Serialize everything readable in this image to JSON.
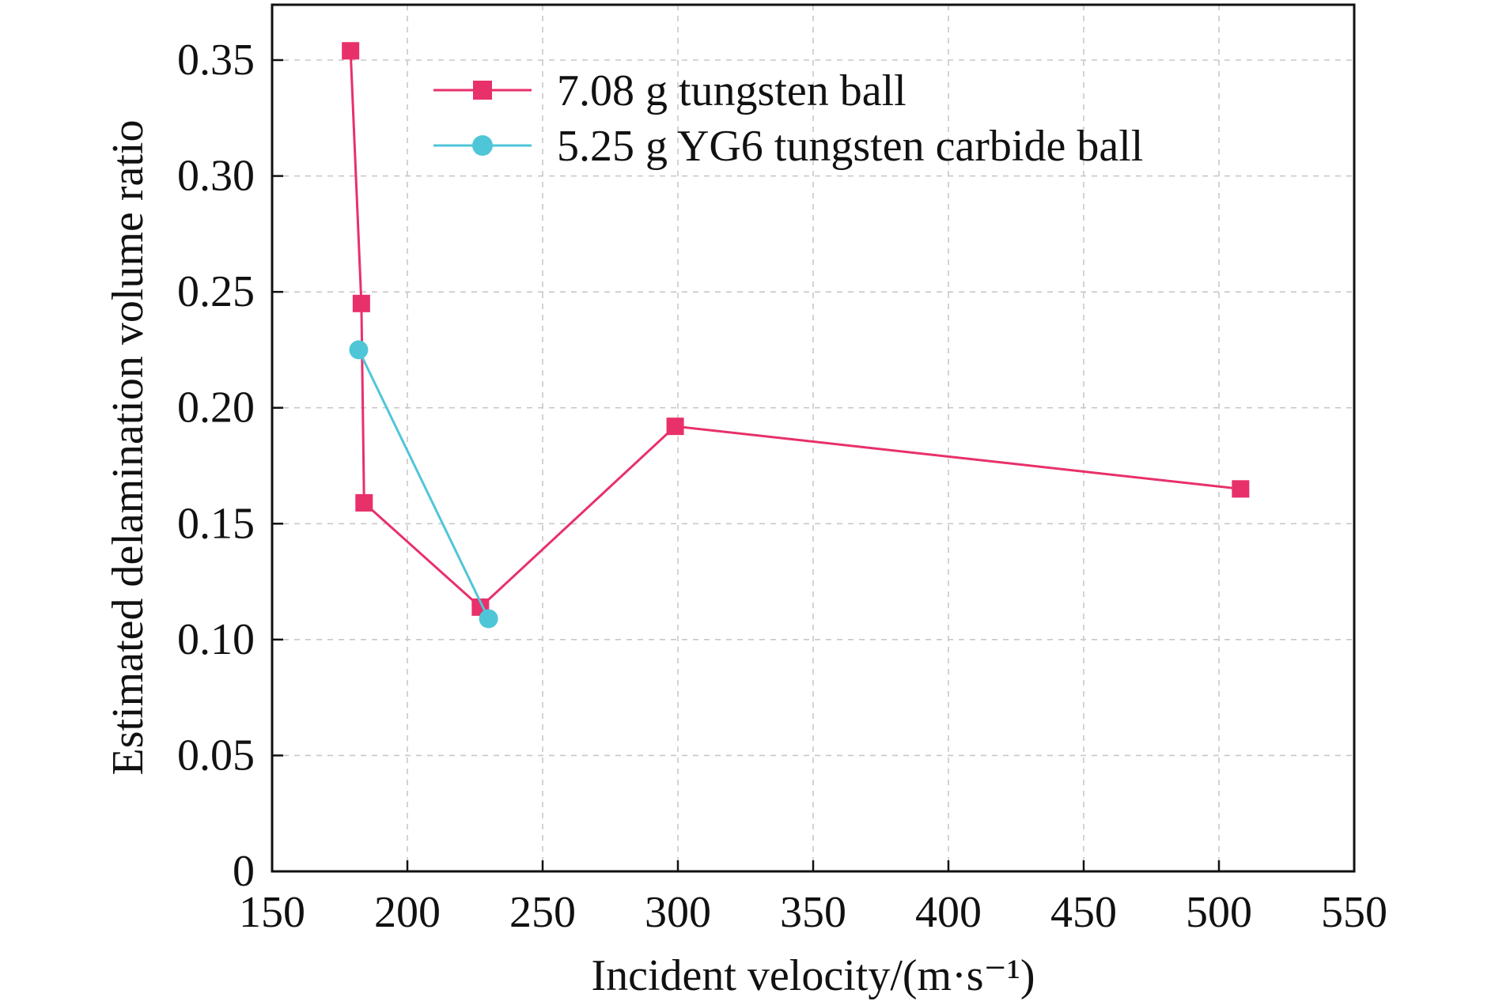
{
  "chart_data": {
    "type": "line",
    "xlabel": "Incident velocity/(m·s⁻¹)",
    "ylabel": "Estimated delamination volume ratio",
    "xlim": [
      150,
      550
    ],
    "ylim": [
      0,
      0.35
    ],
    "x_ticks": [
      "150",
      "200",
      "250",
      "300",
      "350",
      "400",
      "450",
      "500",
      "550"
    ],
    "y_ticks": [
      "0",
      "0.05",
      "0.10",
      "0.15",
      "0.20",
      "0.25",
      "0.30",
      "0.35"
    ],
    "x_tick_values": [
      150,
      200,
      250,
      300,
      350,
      400,
      450,
      500,
      550
    ],
    "y_tick_values": [
      0,
      0.05,
      0.1,
      0.15,
      0.2,
      0.25,
      0.3,
      0.35
    ],
    "grid": true,
    "legend_position": "top-right",
    "series": [
      {
        "name": "7.08 g tungsten ball",
        "marker": "square",
        "color": "#e8306a",
        "points": [
          {
            "x": 179,
            "y": 0.354
          },
          {
            "x": 183,
            "y": 0.245
          },
          {
            "x": 184,
            "y": 0.159
          },
          {
            "x": 227,
            "y": 0.114
          },
          {
            "x": 299,
            "y": 0.192
          },
          {
            "x": 508,
            "y": 0.165
          }
        ]
      },
      {
        "name": "5.25 g YG6 tungsten carbide ball",
        "marker": "circle",
        "color": "#4fc6d8",
        "points": [
          {
            "x": 182,
            "y": 0.225
          },
          {
            "x": 230,
            "y": 0.109
          }
        ]
      }
    ]
  }
}
